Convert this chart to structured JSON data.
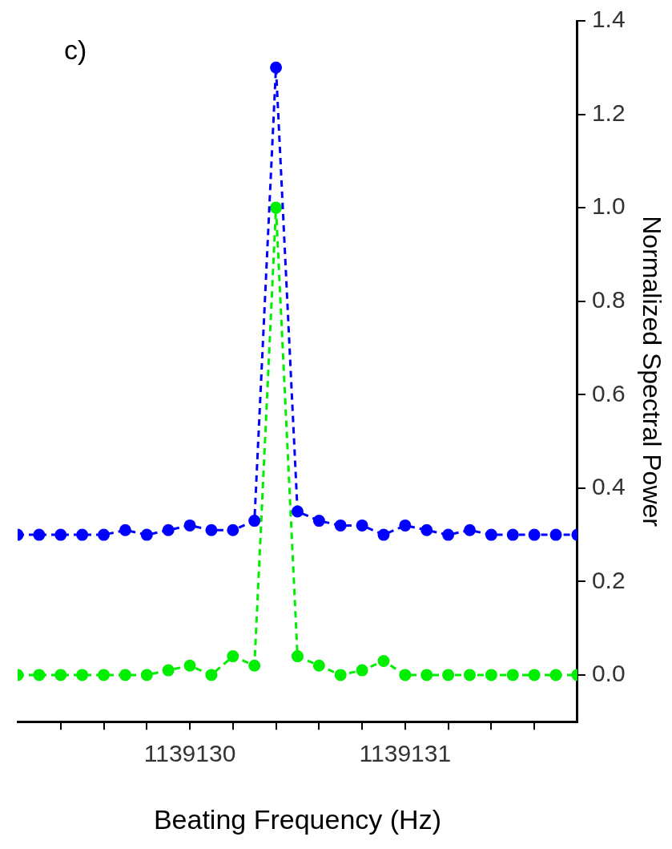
{
  "chart_data": {
    "type": "line",
    "xlabel": "Beating Frequency (Hz)",
    "ylabel": "Normalized Spectral Power",
    "annotations": [
      "c)"
    ],
    "x": [
      1139129.2,
      1139129.3,
      1139129.4,
      1139129.5,
      1139129.6,
      1139129.7,
      1139129.8,
      1139129.9,
      1139130.0,
      1139130.1,
      1139130.2,
      1139130.3,
      1139130.4,
      1139130.5,
      1139130.6,
      1139130.7,
      1139130.8,
      1139130.9,
      1139131.0,
      1139131.1,
      1139131.2,
      1139131.3,
      1139131.4,
      1139131.5,
      1139131.6,
      1139131.7,
      1139131.8
    ],
    "series": [
      {
        "color": "#0000ff",
        "values": [
          0.3,
          0.3,
          0.3,
          0.3,
          0.3,
          0.31,
          0.3,
          0.31,
          0.32,
          0.31,
          0.31,
          0.33,
          1.3,
          0.35,
          0.33,
          0.32,
          0.32,
          0.3,
          0.32,
          0.31,
          0.3,
          0.31,
          0.3,
          0.3,
          0.3,
          0.3,
          0.3
        ]
      },
      {
        "color": "#00ee00",
        "values": [
          0.0,
          0.0,
          0.0,
          0.0,
          0.0,
          0.0,
          0.0,
          0.01,
          0.02,
          0.0,
          0.04,
          0.02,
          1.0,
          0.04,
          0.02,
          0.0,
          0.01,
          0.03,
          0.0,
          0.0,
          0.0,
          0.0,
          0.0,
          0.0,
          0.0,
          0.0,
          0.0
        ]
      }
    ],
    "xlim": [
      1139129.2,
      1139131.8
    ],
    "xticks": [
      {
        "value": 1139129.4,
        "label": null
      },
      {
        "value": 1139129.6,
        "label": null
      },
      {
        "value": 1139129.8,
        "label": null
      },
      1139130,
      {
        "value": 1139130.2,
        "label": null
      },
      {
        "value": 1139130.4,
        "label": null
      },
      {
        "value": 1139130.6,
        "label": null
      },
      {
        "value": 1139130.8,
        "label": null
      },
      1139131,
      {
        "value": 1139131.2,
        "label": null
      },
      {
        "value": 1139131.4,
        "label": null
      },
      {
        "value": 1139131.6,
        "label": null
      }
    ],
    "ylim": [
      -0.1,
      1.4
    ],
    "yticks": [
      {
        "value": 0,
        "label": "0.0"
      },
      0.2,
      0.4,
      0.6,
      0.8,
      {
        "value": 1,
        "label": "1.0"
      },
      1.2,
      1.4
    ],
    "marker": "circle",
    "line_style": "dashed",
    "grid": false,
    "legend": false
  }
}
